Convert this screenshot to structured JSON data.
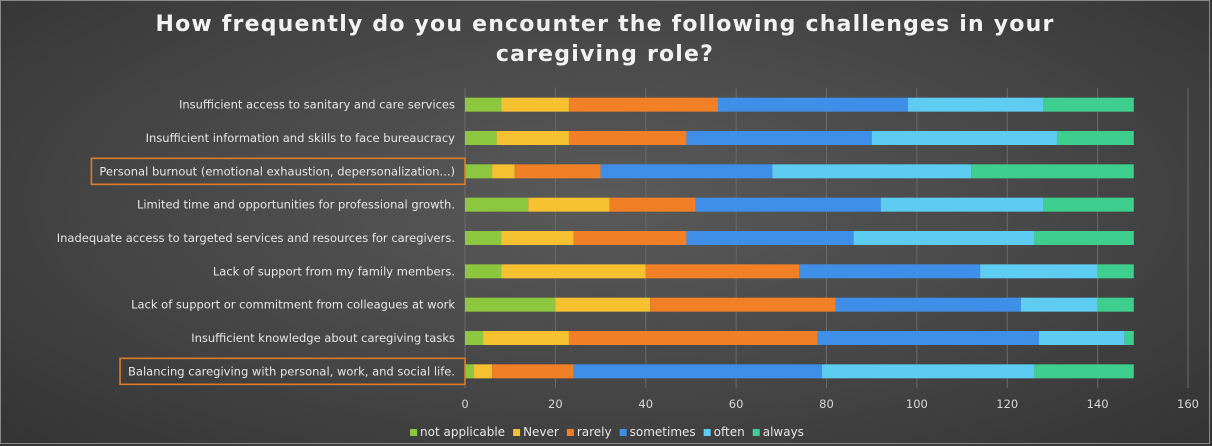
{
  "chart_data": {
    "type": "bar",
    "orientation": "horizontal",
    "stacked": true,
    "title": "How frequently do you encounter the following challenges in your caregiving role?",
    "xlim": [
      0,
      160
    ],
    "xticks": [
      0,
      20,
      40,
      60,
      80,
      100,
      120,
      140,
      160
    ],
    "grid": true,
    "legend_position": "bottom",
    "categories": [
      "Insufficient access to sanitary and care services",
      "Insufficient information and skills to face bureaucracy",
      "Personal burnout (emotional exhaustion, depersonalization...)",
      "Limited time and opportunities for professional growth.",
      "Inadequate access to targeted services and resources for caregivers.",
      "Lack of support from my family members.",
      "Lack of support or commitment from colleagues at work",
      "Insufficient knowledge about caregiving tasks",
      "Balancing caregiving with personal, work, and social life."
    ],
    "highlighted_categories": [
      2,
      8
    ],
    "highlight_color": "#e07b2a",
    "series": [
      {
        "name": "not applicable",
        "color": "#8dc63f",
        "values": [
          8,
          7,
          6,
          14,
          8,
          8,
          20,
          4,
          2
        ]
      },
      {
        "name": "Never",
        "color": "#f5c131",
        "values": [
          15,
          16,
          5,
          18,
          16,
          32,
          21,
          19,
          4
        ]
      },
      {
        "name": "rarely",
        "color": "#f07f26",
        "values": [
          33,
          26,
          19,
          19,
          25,
          34,
          41,
          55,
          18
        ]
      },
      {
        "name": "sometimes",
        "color": "#3f8fe8",
        "values": [
          42,
          41,
          38,
          41,
          37,
          40,
          41,
          49,
          55
        ]
      },
      {
        "name": "often",
        "color": "#5ecbf0",
        "values": [
          30,
          41,
          44,
          36,
          40,
          26,
          17,
          19,
          47
        ]
      },
      {
        "name": "always",
        "color": "#3ecf8e",
        "values": [
          20,
          17,
          36,
          20,
          22,
          8,
          8,
          2,
          22
        ]
      }
    ]
  }
}
